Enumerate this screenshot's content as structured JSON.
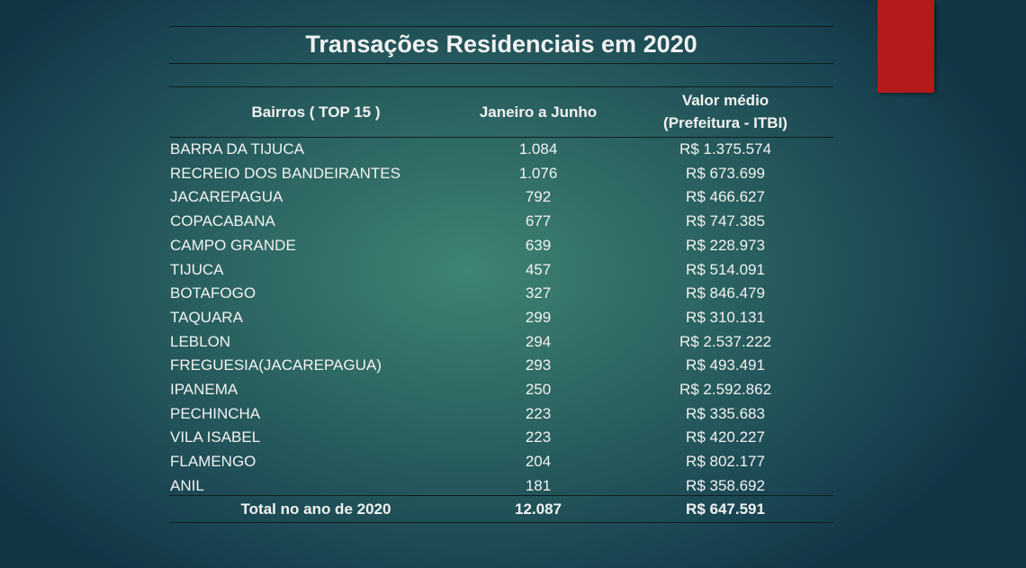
{
  "title": "Transações Residenciais em 2020",
  "table": {
    "header": [
      [
        "Bairros ( TOP 15 )"
      ],
      [
        "Janeiro a Junho"
      ],
      [
        "Valor médio",
        "(Prefeitura - ITBI)"
      ]
    ],
    "rows": [
      [
        "BARRA DA TIJUCA",
        "1.084",
        "R$ 1.375.574"
      ],
      [
        "RECREIO DOS BANDEIRANTES",
        "1.076",
        "R$ 673.699"
      ],
      [
        "JACAREPAGUA",
        "792",
        "R$ 466.627"
      ],
      [
        "COPACABANA",
        "677",
        "R$ 747.385"
      ],
      [
        "CAMPO GRANDE",
        "639",
        "R$ 228.973"
      ],
      [
        "TIJUCA",
        "457",
        "R$ 514.091"
      ],
      [
        "BOTAFOGO",
        "327",
        "R$ 846.479"
      ],
      [
        "TAQUARA",
        "299",
        "R$ 310.131"
      ],
      [
        "LEBLON",
        "294",
        "R$ 2.537.222"
      ],
      [
        "FREGUESIA(JACAREPAGUA)",
        "293",
        "R$ 493.491"
      ],
      [
        "IPANEMA",
        "250",
        "R$ 2.592.862"
      ],
      [
        "PECHINCHA",
        "223",
        "R$ 335.683"
      ],
      [
        "VILA ISABEL",
        "223",
        "R$ 420.227"
      ],
      [
        "FLAMENGO",
        "204",
        "R$ 802.177"
      ],
      [
        "ANIL",
        "181",
        "R$ 358.692"
      ]
    ],
    "total": [
      "Total no ano de 2020",
      "12.087",
      "R$ 647.591"
    ]
  }
}
